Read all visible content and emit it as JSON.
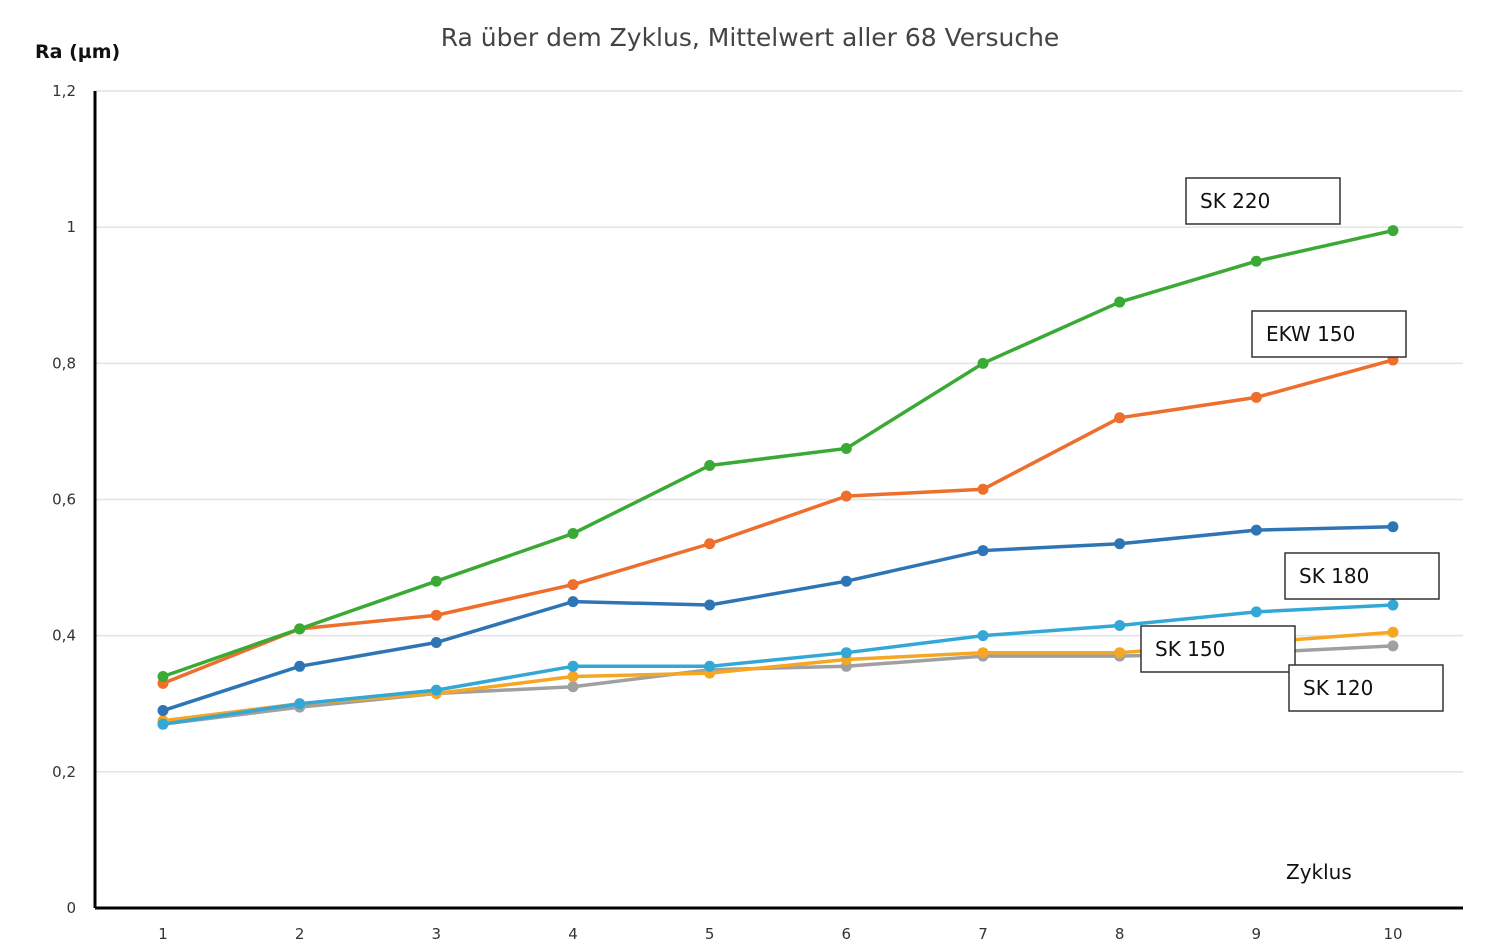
{
  "chart_data": {
    "type": "line",
    "title": "Ra über dem Zyklus, Mittelwert aller 68 Versuche",
    "ylabel": "Ra (µm)",
    "xlabel": "Zyklus",
    "x": [
      1,
      2,
      3,
      4,
      5,
      6,
      7,
      8,
      9,
      10
    ],
    "x_tick_labels": [
      "1",
      "2",
      "3",
      "4",
      "5",
      "6",
      "7",
      "8",
      "9",
      "10"
    ],
    "ylim": [
      0,
      1.2
    ],
    "y_ticks": [
      0,
      0.2,
      0.4,
      0.6,
      0.8,
      1,
      1.2
    ],
    "y_tick_labels": [
      "0",
      "0,2",
      "0,4",
      "0,6",
      "0,8",
      "1",
      "1,2"
    ],
    "grid": "horizontal",
    "series": [
      {
        "name": "SK 220",
        "color": "#3aaa35",
        "values": [
          0.34,
          0.41,
          0.48,
          0.55,
          0.65,
          0.675,
          0.8,
          0.89,
          0.95,
          0.995
        ]
      },
      {
        "name": "EKW 150",
        "color": "#ee6e2c",
        "values": [
          0.33,
          0.41,
          0.43,
          0.475,
          0.535,
          0.605,
          0.615,
          0.72,
          0.75,
          0.805
        ]
      },
      {
        "name": "SK 180",
        "color": "#2e75b6",
        "values": [
          0.29,
          0.355,
          0.39,
          0.45,
          0.445,
          0.48,
          0.525,
          0.535,
          0.555,
          0.56
        ]
      },
      {
        "name": "SK 150",
        "color": "#f5a623",
        "values": [
          0.275,
          0.3,
          0.315,
          0.34,
          0.345,
          0.365,
          0.375,
          0.375,
          0.39,
          0.405
        ]
      },
      {
        "name": "SK 120",
        "color": "#a0a0a0",
        "values": [
          0.27,
          0.295,
          0.315,
          0.325,
          0.35,
          0.355,
          0.37,
          0.37,
          0.375,
          0.385
        ]
      },
      {
        "name": "",
        "color": "#33a8d6",
        "values": [
          0.27,
          0.3,
          0.32,
          0.355,
          0.355,
          0.375,
          0.4,
          0.415,
          0.435,
          0.445
        ]
      }
    ],
    "annotations": [
      {
        "text": "SK 220"
      },
      {
        "text": "EKW 150"
      },
      {
        "text": "SK 180"
      },
      {
        "text": "SK 150"
      },
      {
        "text": "SK 120"
      }
    ]
  }
}
